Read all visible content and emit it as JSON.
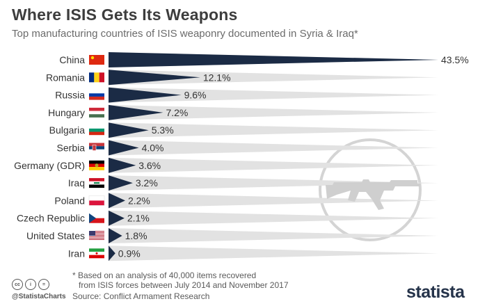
{
  "header": {
    "title": "Where ISIS Gets Its Weapons",
    "subtitle": "Top manufacturing countries of ISIS weaponry documented in Syria & Iraq*"
  },
  "chart_data": {
    "type": "bar",
    "categories": [
      "China",
      "Romania",
      "Russia",
      "Hungary",
      "Bulgaria",
      "Serbia",
      "Germany (GDR)",
      "Iraq",
      "Poland",
      "Czech Republic",
      "United States",
      "Iran"
    ],
    "values": [
      43.5,
      12.1,
      9.6,
      7.2,
      5.3,
      4.0,
      3.6,
      3.2,
      2.2,
      2.1,
      1.8,
      0.9
    ],
    "value_labels": [
      "43.5%",
      "12.1%",
      "9.6%",
      "7.2%",
      "5.3%",
      "4.0%",
      "3.6%",
      "3.2%",
      "2.2%",
      "2.1%",
      "1.8%",
      "0.9%"
    ],
    "xlim": [
      0,
      43.5
    ],
    "bar_color": "#1b2b45",
    "track_color": "#e2e2e2",
    "orientation": "horizontal",
    "flags": [
      "flag-china-icon",
      "flag-romania-icon",
      "flag-russia-icon",
      "flag-hungary-icon",
      "flag-bulgaria-icon",
      "flag-serbia-icon",
      "flag-gdr-icon",
      "flag-iraq-icon",
      "flag-poland-icon",
      "flag-czech-icon",
      "flag-usa-icon",
      "flag-iran-icon"
    ],
    "decoration": "rifle-icon"
  },
  "footer": {
    "note_line1": "* Based on an analysis of 40,000 items recovered",
    "note_line2": "from ISIS forces between July 2014 and November 2017",
    "source": "Source: Conflict Armament Research",
    "handle": "@StatistaCharts",
    "brand": "statista",
    "cc_icons": [
      "cc",
      "i",
      "="
    ]
  }
}
